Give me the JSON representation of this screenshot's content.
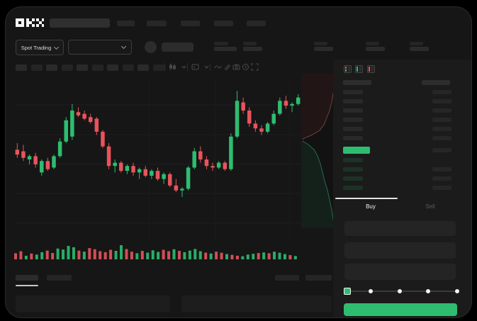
{
  "brand": {
    "logo_text": "OKX"
  },
  "colors": {
    "green": "#2ebd70",
    "red": "#e8545c",
    "frame": "#161616",
    "panel": "#1b1b1b"
  },
  "market_selector": {
    "label": "Spot Trading"
  },
  "header": {
    "nav_placeholder_count": 5,
    "stat_group_count": 5
  },
  "chart_toolbar": {
    "timeframe_placeholder_count": 10,
    "icons": [
      "candle-style-icon",
      "chevron-down-icon",
      "display-options-icon",
      "chevron-down-icon",
      "line-tool-icon",
      "compare-icon",
      "camera-icon",
      "history-icon",
      "fullscreen-icon"
    ]
  },
  "order_book": {
    "view_icons": [
      "book-combined-icon",
      "book-bids-icon",
      "book-asks-icon"
    ],
    "ask_rows": 6,
    "bid_rows": 4,
    "bid_right_bars_start_row": 2,
    "last_price_color": "#2ebd70"
  },
  "trade_panel": {
    "buy_label": "Buy",
    "sell_label": "Sell",
    "active_tab": "Buy",
    "field_count": 3,
    "slider": {
      "stops": 5,
      "active_stop": 1
    },
    "submit_color": "#2ebd70"
  },
  "bottom_bar": {
    "left_tab_count": 2,
    "right_tab_count": 2,
    "active_left_tab": 1,
    "table_placeholder_count": 2
  },
  "chart_data": {
    "type": "candlestick",
    "title": "",
    "axis_labels_visible": false,
    "units": "normalized_0_100",
    "legend": "none",
    "grid": "faint-horizontal",
    "candles": [
      [
        56,
        60,
        51,
        53
      ],
      [
        55,
        59,
        49,
        51
      ],
      [
        50,
        53,
        47,
        52
      ],
      [
        52,
        54,
        45,
        47
      ],
      [
        42,
        50,
        40,
        49
      ],
      [
        49,
        51,
        43,
        44
      ],
      [
        45,
        53,
        44,
        52
      ],
      [
        52,
        63,
        51,
        61
      ],
      [
        61,
        76,
        60,
        74
      ],
      [
        64,
        84,
        62,
        80
      ],
      [
        79,
        82,
        76,
        77
      ],
      [
        78,
        80,
        74,
        75
      ],
      [
        76,
        78,
        72,
        73
      ],
      [
        75,
        76,
        65,
        67
      ],
      [
        67,
        68,
        57,
        58
      ],
      [
        58,
        60,
        44,
        46
      ],
      [
        46,
        50,
        42,
        48
      ],
      [
        48,
        49,
        42,
        43
      ],
      [
        43,
        47,
        41,
        46
      ],
      [
        46,
        48,
        40,
        42
      ],
      [
        42,
        45,
        38,
        44
      ],
      [
        44,
        46,
        39,
        40
      ],
      [
        40,
        44,
        38,
        43
      ],
      [
        43,
        45,
        37,
        38
      ],
      [
        38,
        42,
        35,
        41
      ],
      [
        41,
        42,
        33,
        34
      ],
      [
        34,
        38,
        30,
        31
      ],
      [
        31,
        33,
        27,
        32
      ],
      [
        32,
        46,
        31,
        45
      ],
      [
        45,
        57,
        44,
        55
      ],
      [
        55,
        58,
        48,
        50
      ],
      [
        50,
        52,
        44,
        46
      ],
      [
        46,
        48,
        43,
        45
      ],
      [
        45,
        49,
        44,
        48
      ],
      [
        48,
        49,
        43,
        44
      ],
      [
        44,
        66,
        43,
        64
      ],
      [
        64,
        92,
        63,
        86
      ],
      [
        85,
        88,
        78,
        80
      ],
      [
        80,
        82,
        70,
        72
      ],
      [
        72,
        74,
        67,
        69
      ],
      [
        69,
        71,
        65,
        67
      ],
      [
        67,
        73,
        66,
        72
      ],
      [
        72,
        80,
        71,
        78
      ],
      [
        78,
        88,
        77,
        86
      ],
      [
        86,
        89,
        81,
        83
      ],
      [
        83,
        85,
        79,
        84
      ],
      [
        84,
        90,
        83,
        88
      ]
    ],
    "volume": {
      "heights": [
        40,
        55,
        22,
        38,
        30,
        48,
        60,
        42,
        75,
        68,
        95,
        85,
        60,
        52,
        78,
        70,
        55,
        48,
        66,
        58,
        100,
        72,
        52,
        40,
        58,
        45,
        62,
        50,
        66,
        55,
        70,
        58,
        48,
        60,
        72,
        55,
        45,
        38,
        52,
        44,
        34,
        28,
        22,
        18,
        30,
        36,
        42,
        46,
        40,
        52,
        44,
        34,
        26,
        20
      ],
      "colors": [
        "r",
        "r",
        "g",
        "r",
        "g",
        "g",
        "r",
        "r",
        "g",
        "g",
        "g",
        "g",
        "r",
        "g",
        "r",
        "r",
        "r",
        "r",
        "r",
        "g",
        "g",
        "r",
        "r",
        "g",
        "r",
        "g",
        "g",
        "g",
        "r",
        "r",
        "g",
        "r",
        "g",
        "g",
        "g",
        "g",
        "r",
        "g",
        "r",
        "r",
        "g",
        "r",
        "r",
        "g",
        "g",
        "g",
        "r",
        "g",
        "r",
        "g",
        "g",
        "g",
        "r",
        "g"
      ]
    },
    "depth": {
      "asks_line": [
        [
          50,
          4
        ],
        [
          48,
          16
        ],
        [
          45,
          28
        ],
        [
          43,
          40
        ],
        [
          40,
          52
        ],
        [
          36,
          62
        ],
        [
          32,
          72
        ],
        [
          26,
          80
        ],
        [
          14,
          87
        ],
        [
          4,
          91
        ],
        [
          2,
          93
        ]
      ],
      "bids_line": [
        [
          2,
          95
        ],
        [
          10,
          100
        ],
        [
          18,
          107
        ],
        [
          23,
          116
        ],
        [
          27,
          127
        ],
        [
          30,
          139
        ],
        [
          33,
          151
        ],
        [
          37,
          164
        ],
        [
          40,
          178
        ],
        [
          43,
          192
        ],
        [
          45,
          204
        ],
        [
          46,
          214
        ]
      ]
    }
  }
}
